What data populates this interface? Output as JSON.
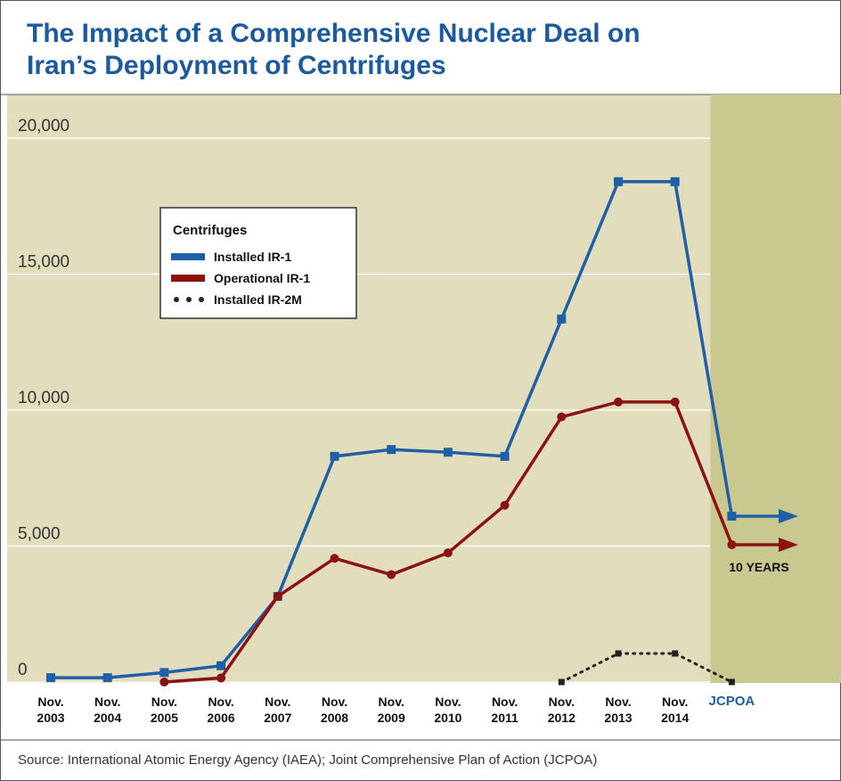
{
  "chart_data": {
    "type": "line",
    "title": "The Impact of a Comprehensive Nuclear Deal on Iran’s Deployment of Centrifuges",
    "categories": [
      "Nov. 2003",
      "Nov. 2004",
      "Nov. 2005",
      "Nov. 2006",
      "Nov. 2007",
      "Nov. 2008",
      "Nov. 2009",
      "Nov. 2010",
      "Nov. 2011",
      "Nov. 2012",
      "Nov. 2013",
      "Nov. 2014",
      "JCPOA"
    ],
    "series": [
      {
        "name": "Installed IR-1",
        "color": "#1f5fa6",
        "marker": "square",
        "arrow": true,
        "values": [
          160,
          160,
          350,
          600,
          3150,
          8300,
          8550,
          8450,
          8300,
          13350,
          18400,
          18400,
          6100
        ]
      },
      {
        "name": "Operational IR-1",
        "color": "#8b1212",
        "marker": "circle",
        "arrow": true,
        "values": [
          null,
          null,
          0,
          150,
          3150,
          4550,
          3950,
          4750,
          6500,
          9750,
          10300,
          10300,
          5050
        ]
      },
      {
        "name": "Installed IR-2M",
        "color": "#222222",
        "marker": "square",
        "dashed": true,
        "values": [
          null,
          null,
          null,
          null,
          null,
          null,
          null,
          null,
          null,
          0,
          1050,
          1050,
          0
        ]
      }
    ],
    "legend_title": "Centrifuges",
    "annotation": "10 YEARS",
    "highlight_color": "#1f5fa6",
    "ylim": [
      0,
      20000
    ],
    "yticks": [
      0,
      {
        "value": 5000,
        "label": "5,000"
      },
      {
        "value": 10000,
        "label": "10,000"
      },
      {
        "value": 15000,
        "label": "15,000"
      },
      {
        "value": 20000,
        "label": "20,000"
      }
    ],
    "grid": true,
    "source": "Source: International Atomic Energy Agency (IAEA); Joint Comprehensive Plan of Action (JCPOA)"
  }
}
